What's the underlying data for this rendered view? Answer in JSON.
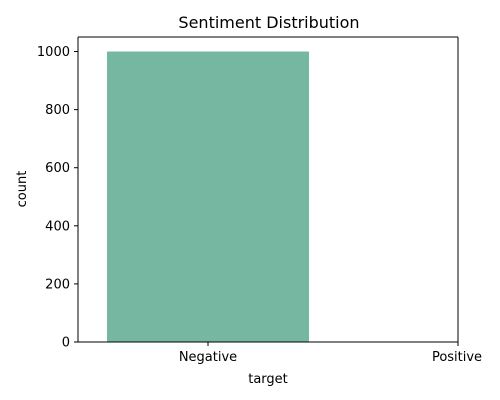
{
  "chart_data": {
    "type": "bar",
    "title": "Sentiment Distribution",
    "xlabel": "target",
    "ylabel": "count",
    "categories": [
      "Negative",
      "Positive"
    ],
    "values": [
      1000,
      0
    ],
    "ylim": [
      0,
      1050
    ],
    "yticks": [
      0,
      200,
      400,
      600,
      800,
      1000
    ],
    "bar_color": "#76b7a1",
    "grid": false,
    "legend": "none"
  }
}
